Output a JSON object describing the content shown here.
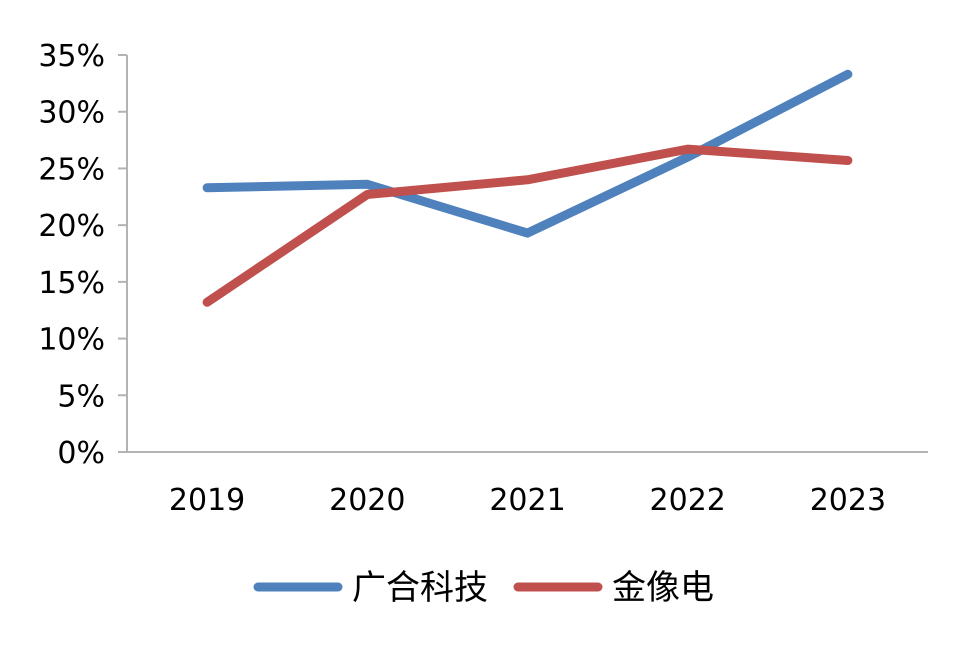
{
  "chart_data": {
    "type": "line",
    "title": "",
    "xlabel": "",
    "ylabel": "",
    "categories": [
      "2019",
      "2020",
      "2021",
      "2022",
      "2023"
    ],
    "ylim": [
      0,
      35
    ],
    "yticks": [
      0,
      5,
      10,
      15,
      20,
      25,
      30,
      35
    ],
    "ytick_suffix": "%",
    "grid": false,
    "legend_position": "bottom",
    "series": [
      {
        "name": "广合科技",
        "color": "#4f81bd",
        "values": [
          23.3,
          23.6,
          19.3,
          26.0,
          33.3
        ]
      },
      {
        "name": "金像电",
        "color": "#c0504d",
        "values": [
          13.2,
          22.7,
          24.0,
          26.7,
          25.7
        ]
      }
    ]
  }
}
